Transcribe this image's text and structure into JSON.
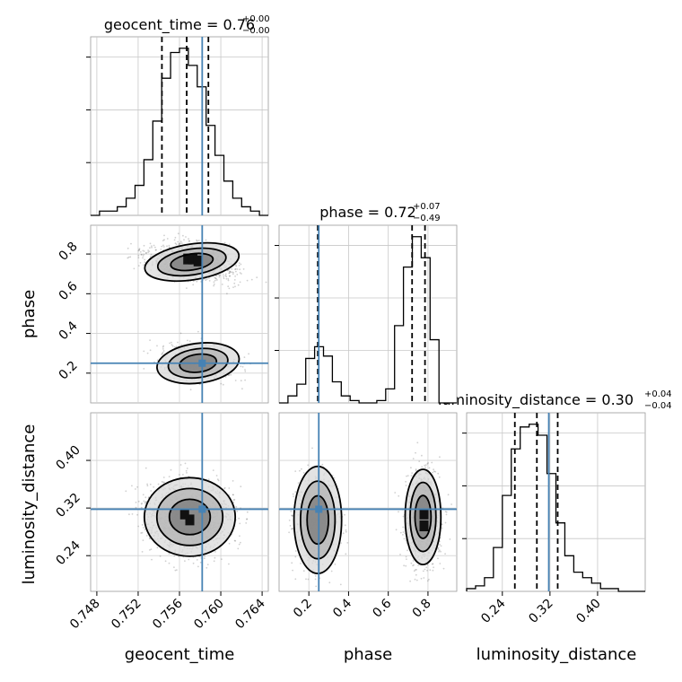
{
  "chart_data": {
    "type": "corner",
    "parameters": [
      "geocent_time",
      "phase",
      "luminosity_distance"
    ],
    "truths": {
      "geocent_time": 0.7582,
      "phase": 0.25,
      "luminosity_distance": 0.318
    },
    "titles": [
      {
        "param": "geocent_time",
        "text": "geocent_time = 0.76",
        "plus": "+0.00",
        "minus": "−0.00"
      },
      {
        "param": "phase",
        "text": "phase = 0.72",
        "plus": "+0.07",
        "minus": "−0.49"
      },
      {
        "param": "luminosity_distance",
        "text": "luminosity_distance = 0.30",
        "plus": "+0.04",
        "minus": "−0.04"
      }
    ],
    "axis_labels": {
      "geocent_time": "geocent_time",
      "phase": "phase",
      "luminosity_distance": "luminosity_distance"
    },
    "ticks": {
      "geocent_time": [
        "0.748",
        "0.752",
        "0.756",
        "0.760",
        "0.764"
      ],
      "phase": [
        "0.2",
        "0.4",
        "0.6",
        "0.8"
      ],
      "luminosity_distance": [
        "0.24",
        "0.32",
        "0.40"
      ]
    },
    "ranges": {
      "geocent_time": [
        0.7474,
        0.7646
      ],
      "phase": [
        0.05,
        0.945
      ],
      "luminosity_distance": [
        0.18,
        0.48
      ]
    },
    "quantiles": {
      "geocent_time": [
        0.7543,
        0.7567,
        0.7588
      ],
      "phase": [
        0.245,
        0.72,
        0.785
      ],
      "luminosity_distance": [
        0.261,
        0.298,
        0.333
      ]
    },
    "histograms": {
      "geocent_time": {
        "edges_start": 0.7474,
        "bin_width": 0.00086,
        "counts": [
          0,
          1,
          1,
          2,
          4,
          7,
          13,
          22,
          32,
          38,
          39,
          35,
          30,
          21,
          14,
          8,
          4,
          2,
          1,
          0
        ]
      },
      "phase": {
        "edges_start": 0.05,
        "bin_width": 0.04475,
        "counts": [
          0,
          3,
          8,
          19,
          24,
          20,
          9,
          3,
          1,
          0,
          0,
          1,
          6,
          33,
          58,
          71,
          62,
          27,
          0,
          0
        ]
      },
      "luminosity_distance": {
        "edges_start": 0.18,
        "bin_width": 0.015,
        "counts": [
          1,
          2,
          5,
          16,
          35,
          52,
          60,
          61,
          57,
          43,
          25,
          13,
          7,
          5,
          3,
          1,
          1,
          0,
          0,
          0
        ]
      }
    },
    "grid": true
  }
}
